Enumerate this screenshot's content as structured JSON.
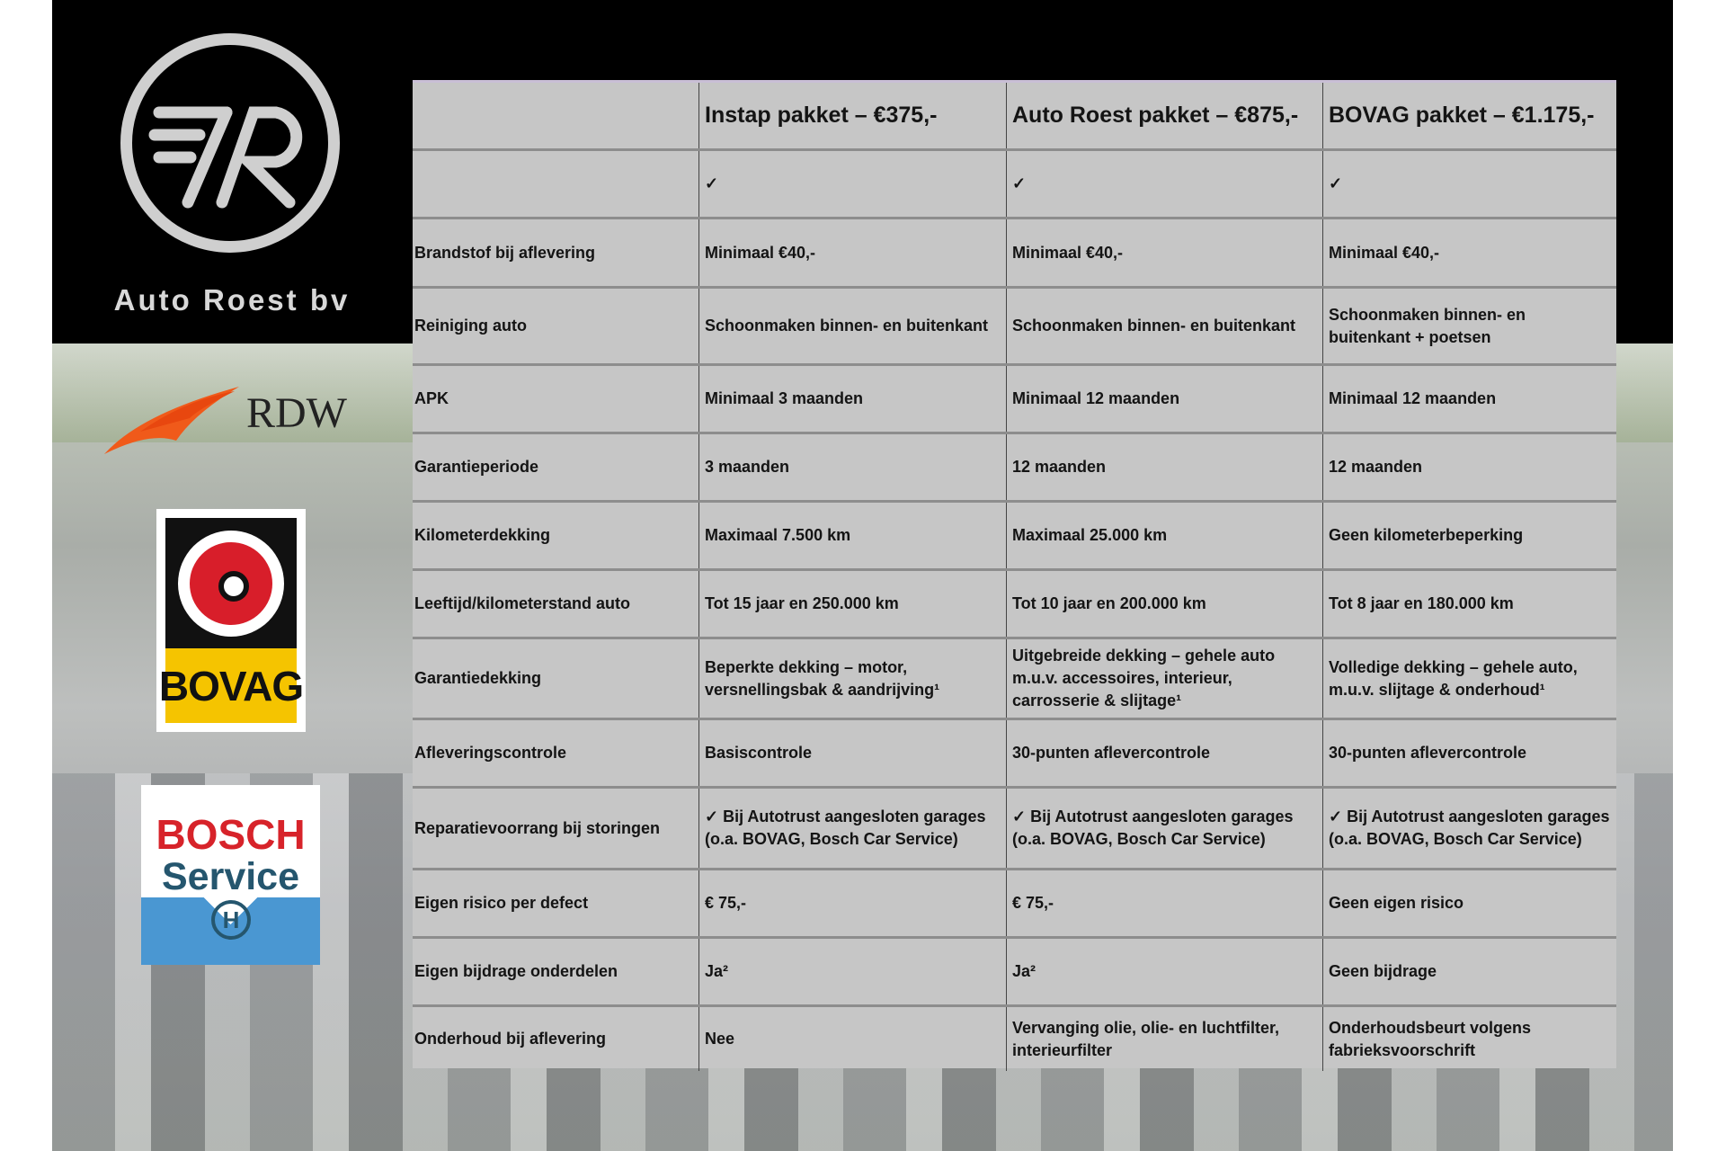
{
  "brand": {
    "name": "Auto Roest bv",
    "logo_letters": "AR"
  },
  "logos": {
    "rdw": "RDW",
    "bovag": "BOVAG",
    "bosch_line1": "BOSCH",
    "bosch_line2": "Service"
  },
  "table": {
    "headers": [
      "",
      "Instap pakket – €375,-",
      "Auto Roest pakket – €875,-",
      "BOVAG pakket – €1.175,-"
    ],
    "rows": [
      [
        "",
        "✓",
        "✓",
        "✓"
      ],
      [
        "Brandstof bij aflevering",
        "Minimaal €40,-",
        "Minimaal €40,-",
        "Minimaal €40,-"
      ],
      [
        "Reiniging auto",
        "Schoonmaken binnen- en buitenkant",
        "Schoonmaken binnen- en buitenkant",
        "Schoonmaken binnen- en buitenkant + poetsen"
      ],
      [
        "APK",
        "Minimaal 3 maanden",
        "Minimaal 12 maanden",
        "Minimaal 12 maanden"
      ],
      [
        "Garantieperiode",
        "3 maanden",
        "12 maanden",
        "12 maanden"
      ],
      [
        "Kilometerdekking",
        "Maximaal 7.500 km",
        "Maximaal 25.000 km",
        "Geen kilometerbeperking"
      ],
      [
        "Leeftijd/kilometerstand auto",
        "Tot 15 jaar en 250.000 km",
        "Tot 10 jaar en 200.000 km",
        "Tot 8 jaar en 180.000 km"
      ],
      [
        "Garantiedekking",
        "Beperkte dekking – motor, versnellingsbak & aandrijving¹",
        "Uitgebreide dekking – gehele auto m.u.v. accessoires, interieur, carrosserie & slijtage¹",
        "Volledige dekking – gehele auto, m.u.v. slijtage & onderhoud¹"
      ],
      [
        "Afleveringscontrole",
        "Basiscontrole",
        "30-punten aflevercontrole",
        "30-punten aflevercontrole"
      ],
      [
        "Reparatievoorrang bij storingen",
        "✓ Bij Autotrust aangesloten garages (o.a. BOVAG, Bosch Car Service)",
        "✓ Bij Autotrust aangesloten garages (o.a. BOVAG, Bosch Car Service)",
        "✓ Bij Autotrust aangesloten garages (o.a. BOVAG, Bosch Car Service)"
      ],
      [
        "Eigen risico per defect",
        "€ 75,-",
        "€ 75,-",
        "Geen eigen risico"
      ],
      [
        "Eigen bijdrage onderdelen",
        "Ja²",
        "Ja²",
        "Geen bijdrage"
      ],
      [
        "Onderhoud bij aflevering",
        "Nee",
        "Vervanging olie, olie- en luchtfilter, interieurfilter",
        "Onderhoudsbeurt volgens fabrieksvoorschrift"
      ]
    ]
  }
}
